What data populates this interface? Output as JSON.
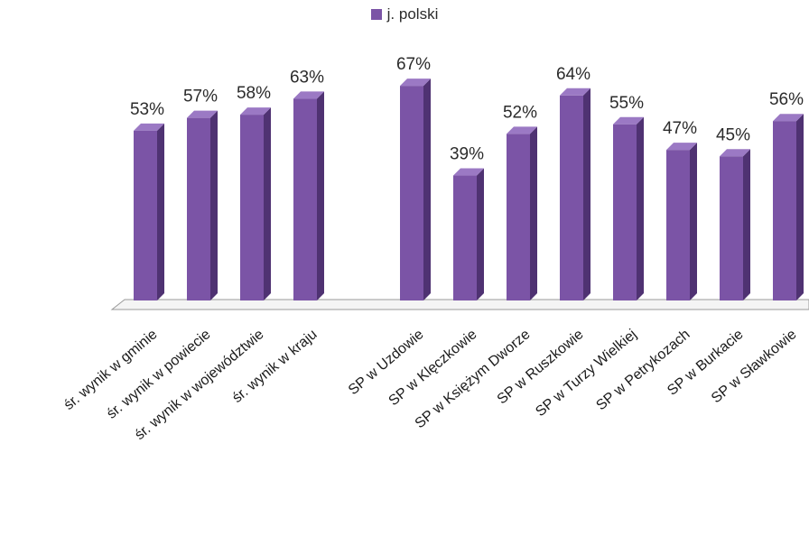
{
  "chart_data": {
    "type": "bar",
    "title": "",
    "xlabel": "",
    "ylabel": "",
    "ylim": [
      0,
      70
    ],
    "grid": false,
    "legend_position": "top-center",
    "categories": [
      "śr. wynik w gminie",
      "śr. wynik w powiecie",
      "śr. wynik w województwie",
      "śr. wynik w kraju",
      "SP w Uzdowie",
      "SP w Klęczkowie",
      "SP w Księżym Dworze",
      "SP w Ruszkowie",
      "SP w Turzy Wielkiej",
      "SP w Petrykozach",
      "SP w Burkacie",
      "SP w Sławkowie"
    ],
    "series": [
      {
        "name": "j. polski",
        "color": "#7b54a6",
        "values": [
          53,
          57,
          58,
          63,
          67,
          39,
          52,
          64,
          55,
          47,
          45,
          56
        ],
        "value_labels": [
          "53%",
          "57%",
          "58%",
          "63%",
          "67%",
          "39%",
          "52%",
          "64%",
          "55%",
          "47%",
          "45%",
          "56%"
        ]
      }
    ]
  },
  "colors": {
    "bar_front": "#7b54a6",
    "bar_side": "#4f3272",
    "bar_top": "#9b79c4",
    "floor": "#f4f4f4",
    "floor_edge": "#9a9a9a"
  }
}
